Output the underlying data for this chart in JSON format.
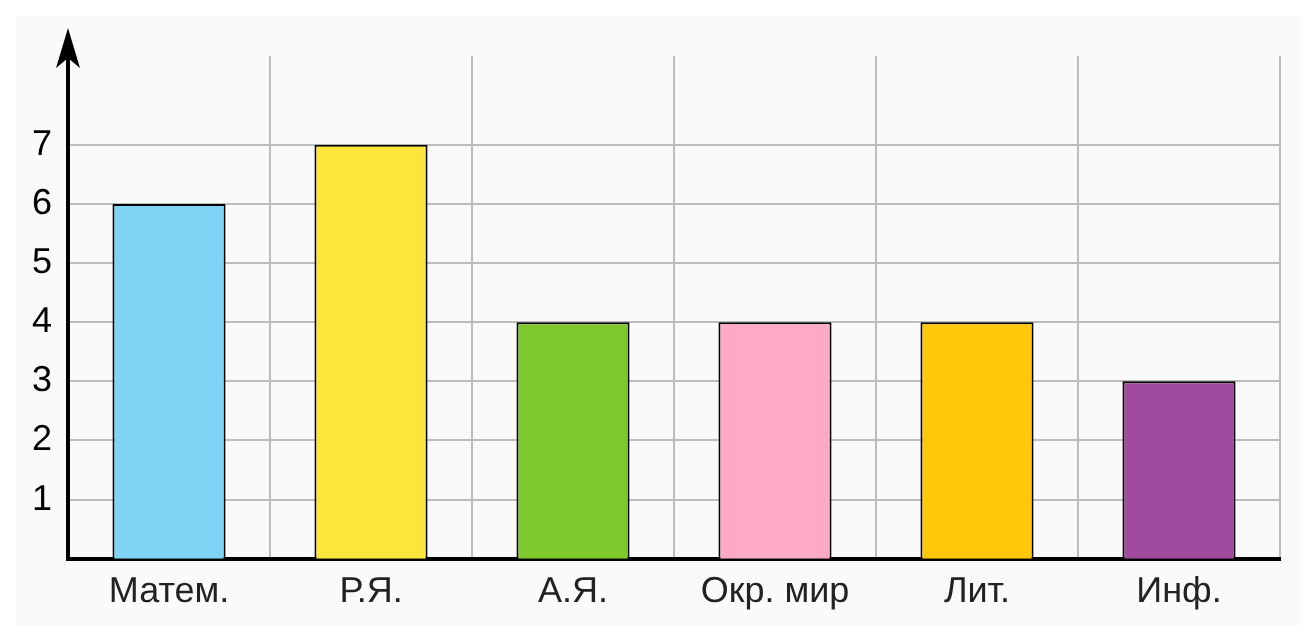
{
  "chart_data": {
    "type": "bar",
    "categories": [
      "Матем.",
      "Р.Я.",
      "А.Я.",
      "Окр. мир",
      "Лит.",
      "Инф."
    ],
    "values": [
      6,
      7,
      4,
      4,
      4,
      3
    ],
    "colors": [
      "#7fd4f5",
      "#fde53b",
      "#7dc92c",
      "#fdaac6",
      "#fec70a",
      "#a04b9e"
    ],
    "ylim": [
      0,
      8.5
    ],
    "yticks": [
      1,
      2,
      3,
      4,
      5,
      6,
      7
    ],
    "grid": true,
    "legend": false
  }
}
